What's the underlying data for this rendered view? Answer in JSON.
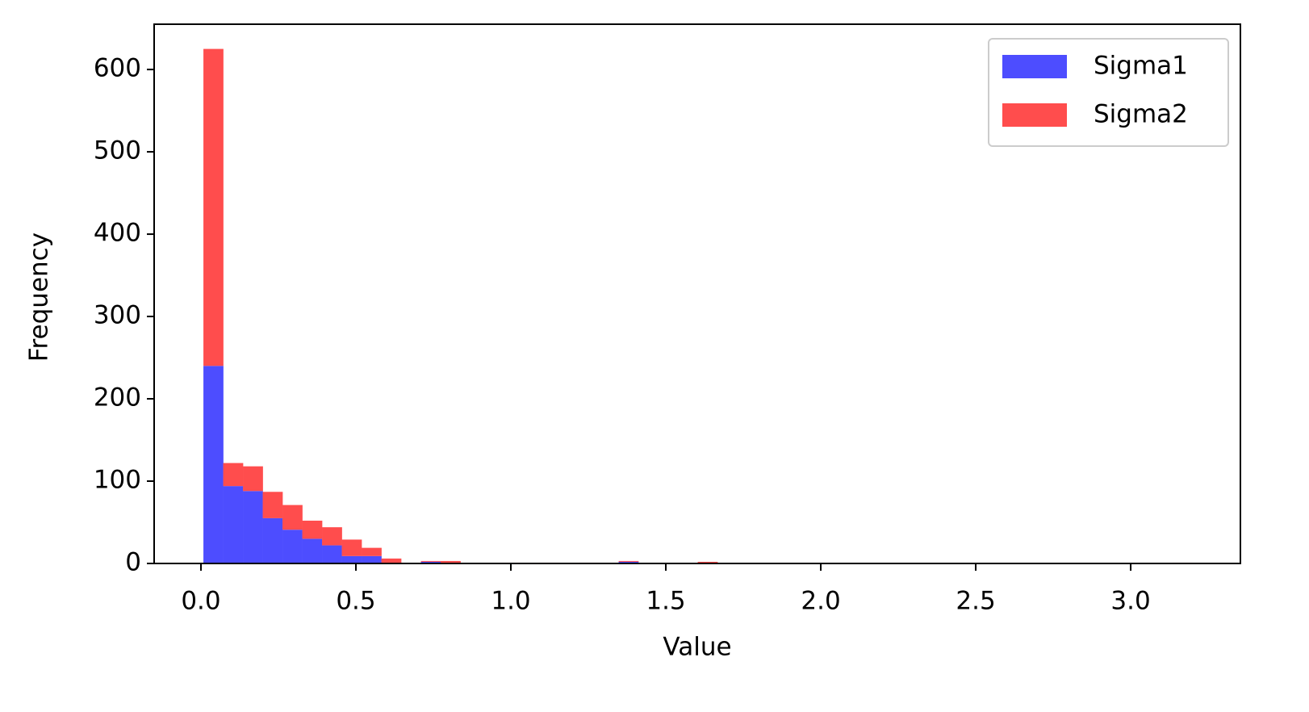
{
  "chart_data": {
    "type": "histogram",
    "xlabel": "Value",
    "ylabel": "Frequency",
    "stacked": true,
    "legend": "upper right",
    "bins": [
      0.008,
      0.0718,
      0.1356,
      0.1994,
      0.2632,
      0.327,
      0.3908,
      0.4546,
      0.5184,
      0.5822,
      0.646,
      0.7098,
      0.7736,
      0.8374,
      0.9012,
      0.965,
      1.0288,
      1.0926,
      1.1564,
      1.2202,
      1.284,
      1.3478,
      1.4116,
      1.4754,
      1.5392,
      1.603,
      1.6668,
      1.7306,
      1.7944,
      1.8582,
      1.922,
      1.9858,
      2.0496,
      2.1134,
      2.1772,
      2.241,
      2.3048,
      2.3686,
      2.4324,
      2.4962,
      2.56,
      2.6238,
      2.6876,
      2.7514,
      2.8152,
      2.879,
      2.9428,
      3.0066,
      3.0704,
      3.1342,
      3.198
    ],
    "series": [
      {
        "name": "Sigma1",
        "color": "#4d4dff",
        "values": [
          240,
          94,
          88,
          55,
          41,
          30,
          22,
          9,
          9,
          1,
          0,
          2,
          1,
          0,
          0,
          0,
          0,
          0,
          0,
          0,
          0,
          2,
          0,
          0,
          0,
          0,
          0,
          0,
          0,
          0,
          0,
          0,
          0,
          0,
          0,
          0,
          0,
          0,
          0,
          0,
          0,
          0,
          0,
          0,
          0,
          0,
          0,
          0,
          0,
          0
        ]
      },
      {
        "name": "Sigma2",
        "color": "#ff4d4d",
        "values": [
          385,
          28,
          30,
          32,
          30,
          22,
          22,
          20,
          10,
          5,
          0,
          1,
          2,
          0,
          0,
          1,
          0,
          1,
          0,
          1,
          0,
          1,
          0,
          0,
          0,
          2,
          0,
          0,
          0,
          0,
          0,
          0,
          0,
          0,
          0,
          0,
          0,
          0,
          0,
          0,
          0,
          0,
          0,
          0,
          0,
          0,
          0,
          0,
          0,
          1
        ]
      }
    ],
    "xlim": [
      -0.151,
      3.354
    ],
    "ylim": [
      0,
      655
    ],
    "xticks": [
      {
        "value": 0,
        "label": "0.0"
      },
      0.5,
      {
        "value": 1,
        "label": "1.0"
      },
      1.5,
      {
        "value": 2,
        "label": "2.0"
      },
      2.5,
      {
        "value": 3,
        "label": "3.0"
      }
    ],
    "yticks": [
      0,
      100,
      200,
      300,
      400,
      500,
      600
    ]
  }
}
